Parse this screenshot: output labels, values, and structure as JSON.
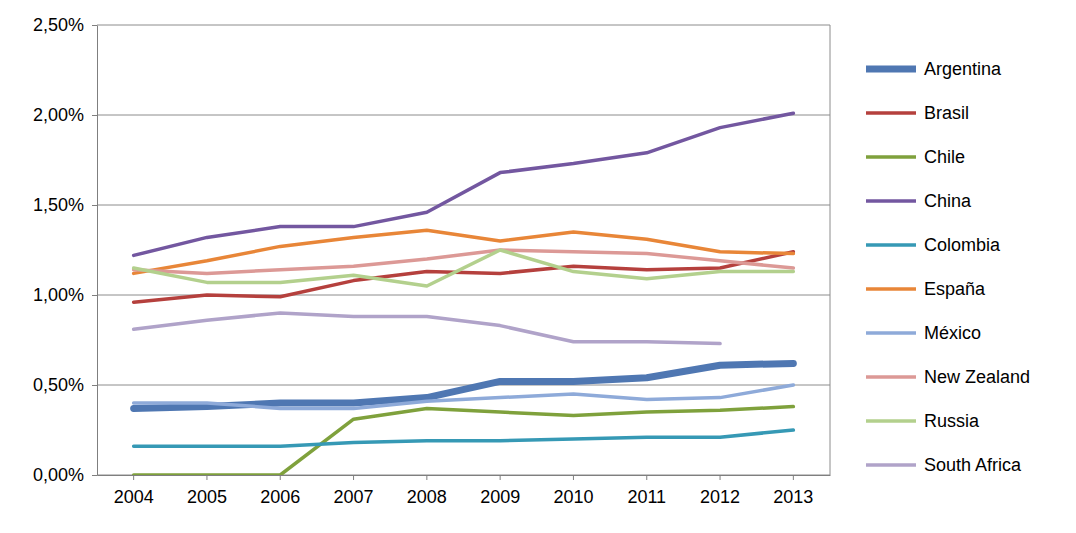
{
  "chart_data": {
    "type": "line",
    "categories": [
      "2004",
      "2005",
      "2006",
      "2007",
      "2008",
      "2009",
      "2010",
      "2011",
      "2012",
      "2013"
    ],
    "series": [
      {
        "name": "Argentina",
        "color": "#4f77b2",
        "line_style": "thick",
        "values": [
          0.37,
          0.38,
          0.4,
          0.4,
          0.43,
          0.52,
          0.52,
          0.54,
          0.61,
          0.62
        ]
      },
      {
        "name": "Brasil",
        "color": "#b5403d",
        "values": [
          0.96,
          1.0,
          0.99,
          1.08,
          1.13,
          1.12,
          1.16,
          1.14,
          1.15,
          1.24
        ]
      },
      {
        "name": "Chile",
        "color": "#7fa13c",
        "values": [
          0.0,
          0.0,
          0.0,
          0.31,
          0.37,
          0.35,
          0.33,
          0.35,
          0.36,
          0.38
        ]
      },
      {
        "name": "China",
        "color": "#7357a0",
        "values": [
          1.22,
          1.32,
          1.38,
          1.38,
          1.46,
          1.68,
          1.73,
          1.79,
          1.93,
          2.01
        ]
      },
      {
        "name": "Colombia",
        "color": "#3699b5",
        "values": [
          0.16,
          0.16,
          0.16,
          0.18,
          0.19,
          0.19,
          0.2,
          0.21,
          0.21,
          0.25
        ]
      },
      {
        "name": "España",
        "color": "#e88638",
        "values": [
          1.12,
          1.19,
          1.27,
          1.32,
          1.36,
          1.3,
          1.35,
          1.31,
          1.24,
          1.23
        ]
      },
      {
        "name": "México",
        "color": "#8eaad9",
        "values": [
          0.4,
          0.4,
          0.37,
          0.37,
          0.41,
          0.43,
          0.45,
          0.42,
          0.43,
          0.5
        ]
      },
      {
        "name": "New Zealand",
        "color": "#dc9996",
        "values": [
          1.14,
          1.12,
          1.14,
          1.16,
          1.2,
          1.25,
          1.24,
          1.23,
          1.19,
          1.15
        ]
      },
      {
        "name": "Russia",
        "color": "#b3d08d",
        "values": [
          1.15,
          1.07,
          1.07,
          1.11,
          1.05,
          1.25,
          1.13,
          1.09,
          1.13,
          1.13
        ]
      },
      {
        "name": "South Africa",
        "color": "#b0a3c9",
        "values": [
          0.81,
          0.86,
          0.9,
          0.88,
          0.88,
          0.83,
          0.74,
          0.74,
          0.73,
          null
        ]
      }
    ],
    "ylim": [
      0,
      2.5
    ],
    "yticks": [
      {
        "value": 0,
        "label": "0,00%"
      },
      {
        "value": 0.5,
        "label": "0,50%"
      },
      {
        "value": 1,
        "label": "1,00%"
      },
      {
        "value": 1.5,
        "label": "1,50%"
      },
      {
        "value": 2,
        "label": "2,00%"
      },
      {
        "value": 2.5,
        "label": "2,50%"
      }
    ],
    "grid": true,
    "legend": "right"
  }
}
